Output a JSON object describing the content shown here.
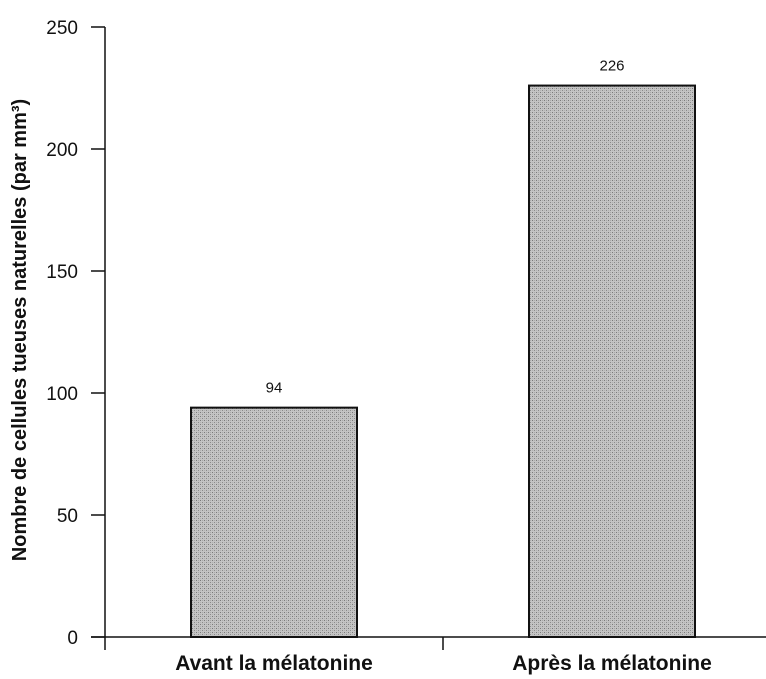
{
  "chart_data": {
    "type": "bar",
    "categories": [
      "Avant la mélatonine",
      "Après la mélatonine"
    ],
    "values": [
      94,
      226
    ],
    "data_labels": [
      "94",
      "226"
    ],
    "title": "",
    "xlabel": "",
    "ylabel": "Nombre de cellules tueuses naturelles (par mm³)",
    "ylim": [
      0,
      250
    ],
    "yticks": [
      0,
      50,
      100,
      150,
      200,
      250
    ],
    "grid": false,
    "legend": "none",
    "bar_color": "#b4b4b4"
  }
}
